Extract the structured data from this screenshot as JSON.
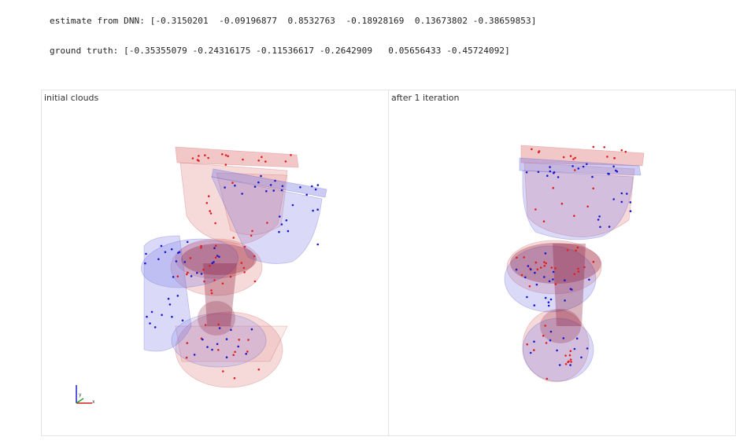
{
  "output": {
    "estimate_line": "estimate from DNN: [-0.3150201  -0.09196877  0.8532763  -0.18928169  0.13673802 -0.38659853]",
    "truth_line": "ground truth: [-0.35355079 -0.24316175 -0.11536617 -0.2642909   0.05656433 -0.45724092]"
  },
  "viewers": {
    "left": {
      "title": "initial clouds"
    },
    "right": {
      "title": "after 1 iteration"
    }
  },
  "axes": {
    "x_label": "x",
    "y_label": "y"
  },
  "colors": {
    "source_cloud": "#e02020",
    "target_cloud": "#1a1acc",
    "source_mesh": "#e07a7a",
    "target_mesh": "#7a7ae6",
    "overlap_mesh": "#8a1a3a"
  }
}
